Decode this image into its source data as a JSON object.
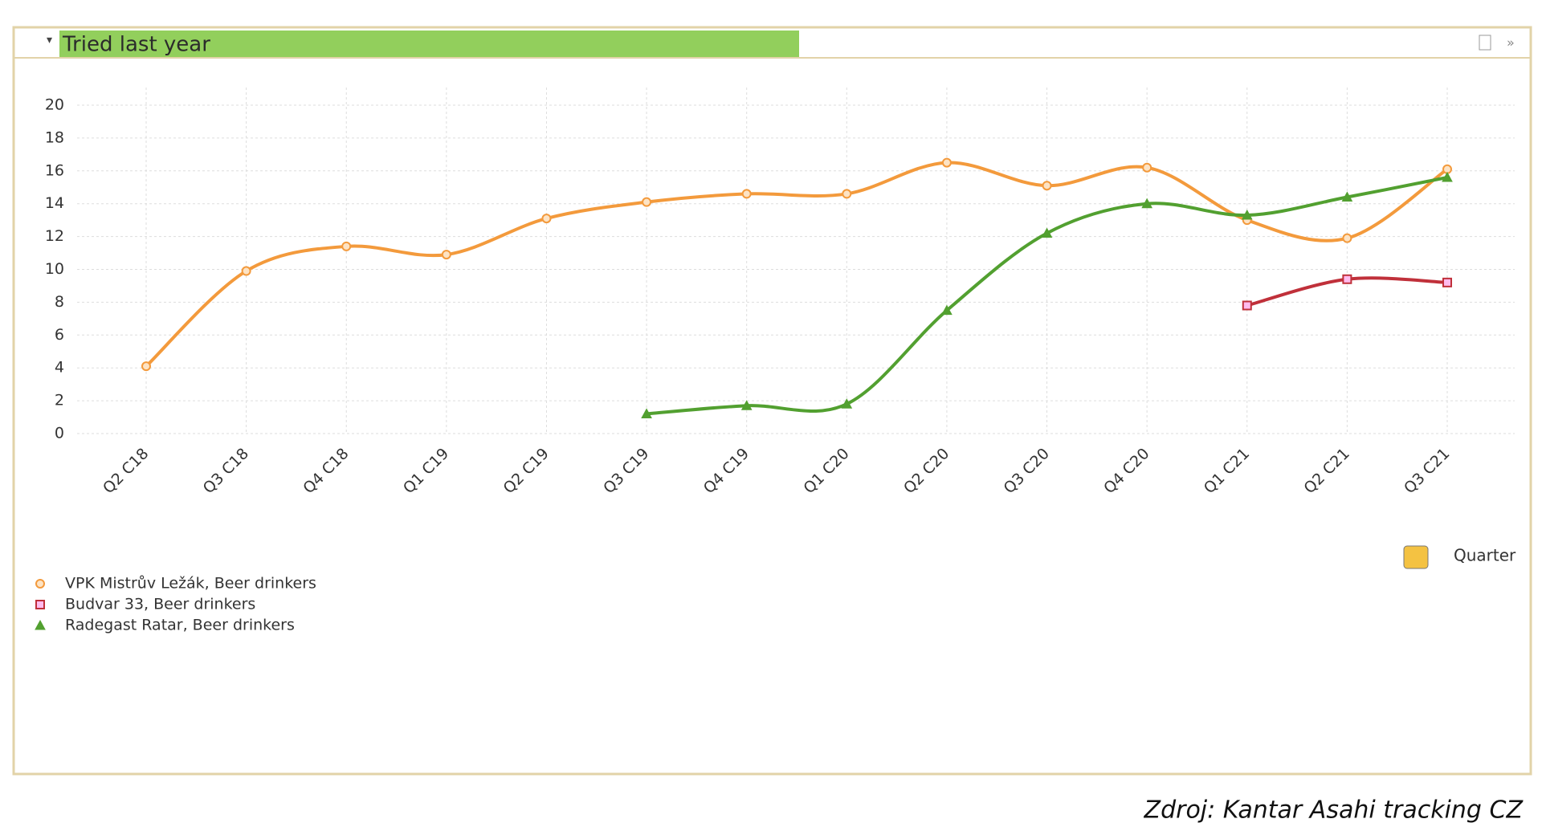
{
  "chart_data": {
    "type": "line",
    "title": "Tried last year",
    "categories": [
      "Q2 C18",
      "Q3 C18",
      "Q4 C18",
      "Q1 C19",
      "Q2 C19",
      "Q3 C19",
      "Q4 C19",
      "Q1 C20",
      "Q2 C20",
      "Q3 C20",
      "Q4 C20",
      "Q1 C21",
      "Q2 C21",
      "Q3 C21"
    ],
    "series": [
      {
        "name": "VPK Mistrův Ležák, Beer drinkers",
        "color": "#f39a3c",
        "marker": "circle",
        "values": [
          4.1,
          9.9,
          11.4,
          10.9,
          13.1,
          14.1,
          14.6,
          14.6,
          16.5,
          15.1,
          16.2,
          13.0,
          11.9,
          16.1
        ]
      },
      {
        "name": "Budvar 33, Beer drinkers",
        "color": "#c0303a",
        "marker": "square",
        "values": [
          null,
          null,
          null,
          null,
          null,
          null,
          null,
          null,
          null,
          null,
          null,
          7.8,
          9.4,
          9.2
        ]
      },
      {
        "name": "Radegast Ratar, Beer drinkers",
        "color": "#52a030",
        "marker": "triangle",
        "values": [
          null,
          null,
          null,
          null,
          null,
          1.2,
          1.7,
          1.8,
          7.5,
          12.2,
          14.0,
          13.3,
          14.4,
          15.6
        ]
      }
    ],
    "ylim": [
      0,
      20
    ],
    "yticks": [
      0,
      2,
      4,
      6,
      8,
      10,
      12,
      14,
      16,
      18,
      20
    ],
    "grid": true,
    "x_label": "Quarter",
    "source": "Zdroj: Kantar Asahi tracking CZ"
  }
}
